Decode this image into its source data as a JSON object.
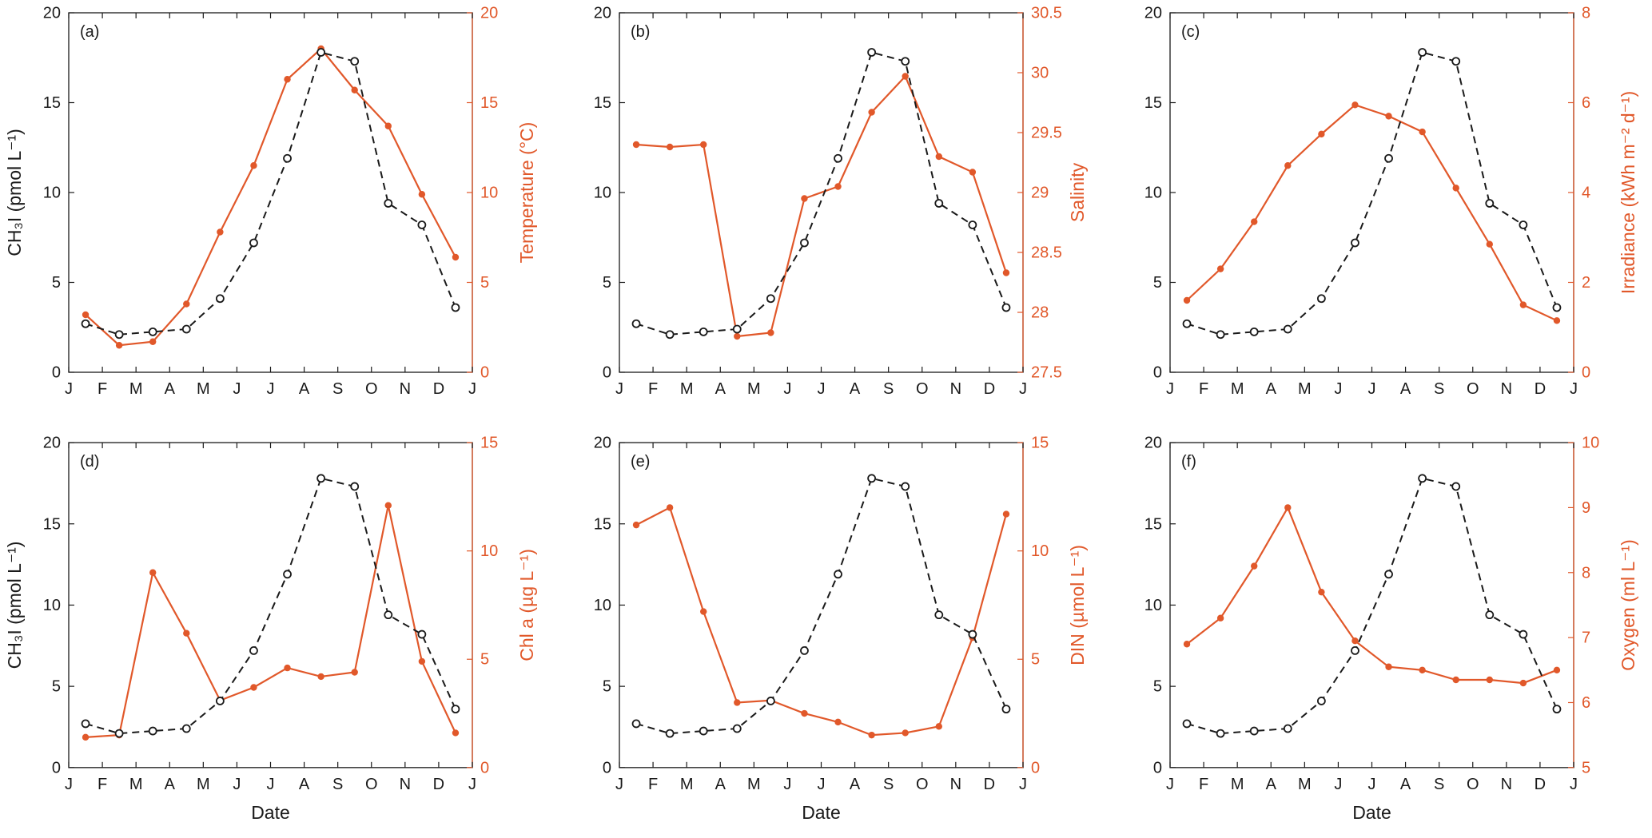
{
  "colors": {
    "primary": "#1a1a1a",
    "accent": "#e1582a",
    "background": "#ffffff"
  },
  "chart_data": {
    "type": "line",
    "xlabel": "Date",
    "x_tick_labels": [
      "J",
      "F",
      "M",
      "A",
      "M",
      "J",
      "J",
      "A",
      "S",
      "O",
      "N",
      "D",
      "J"
    ],
    "x_range_months": [
      0,
      12
    ],
    "grid": false,
    "ch3i": {
      "label": "CH₃I (pmol L⁻¹)",
      "ylim": [
        0,
        20
      ],
      "ticks": [
        0,
        5,
        10,
        15,
        20
      ],
      "style": "black dashed line, open circle markers",
      "values": [
        2.7,
        2.1,
        2.25,
        2.4,
        4.1,
        7.2,
        11.9,
        17.8,
        17.3,
        9.4,
        8.2,
        3.6
      ]
    },
    "panels": [
      {
        "id": "a",
        "label": "(a)",
        "show_left_label": true,
        "show_xlabel": false,
        "right": {
          "label": "Temperature (°C)",
          "ylim": [
            0,
            20
          ],
          "ticks": [
            0,
            5,
            10,
            15,
            20
          ],
          "style": "orange solid line, filled circle markers",
          "values": [
            3.2,
            1.5,
            1.7,
            3.8,
            7.8,
            11.5,
            16.3,
            18.0,
            15.7,
            13.7,
            9.9,
            6.4
          ]
        }
      },
      {
        "id": "b",
        "label": "(b)",
        "show_left_label": false,
        "show_xlabel": false,
        "right": {
          "label": "Salinity",
          "ylim": [
            27.5,
            30.5
          ],
          "ticks": [
            27.5,
            28,
            28.5,
            29,
            29.5,
            30,
            30.5
          ],
          "style": "orange solid line, filled circle markers",
          "values": [
            29.4,
            29.38,
            29.4,
            27.8,
            27.83,
            28.95,
            29.05,
            29.67,
            29.97,
            29.3,
            29.17,
            28.33
          ]
        }
      },
      {
        "id": "c",
        "label": "(c)",
        "show_left_label": false,
        "show_xlabel": false,
        "right": {
          "label": "Irradiance (kWh m⁻² d⁻¹)",
          "ylim": [
            0,
            8
          ],
          "ticks": [
            0,
            2,
            4,
            6,
            8
          ],
          "style": "orange solid line, filled circle markers",
          "values": [
            1.6,
            2.3,
            3.35,
            4.6,
            5.3,
            5.95,
            5.7,
            5.35,
            4.1,
            2.85,
            1.5,
            1.15
          ]
        }
      },
      {
        "id": "d",
        "label": "(d)",
        "show_left_label": true,
        "show_xlabel": true,
        "right": {
          "label": "Chl a (µg L⁻¹)",
          "ylim": [
            0,
            15
          ],
          "ticks": [
            0,
            5,
            10,
            15
          ],
          "style": "orange solid line, filled circle markers",
          "values": [
            1.4,
            1.5,
            9.0,
            6.2,
            3.1,
            3.7,
            4.6,
            4.2,
            4.4,
            12.1,
            4.9,
            1.6
          ]
        }
      },
      {
        "id": "e",
        "label": "(e)",
        "show_left_label": false,
        "show_xlabel": true,
        "right": {
          "label": "DIN (µmol L⁻¹)",
          "ylim": [
            0,
            15
          ],
          "ticks": [
            0,
            5,
            10,
            15
          ],
          "style": "orange solid line, filled circle markers",
          "values": [
            11.2,
            12.0,
            7.2,
            3.0,
            3.1,
            2.5,
            2.1,
            1.5,
            1.6,
            1.9,
            6.0,
            11.7
          ]
        }
      },
      {
        "id": "f",
        "label": "(f)",
        "show_left_label": false,
        "show_xlabel": true,
        "right": {
          "label": "Oxygen (ml L⁻¹)",
          "ylim": [
            5,
            10
          ],
          "ticks": [
            5,
            6,
            7,
            8,
            9,
            10
          ],
          "style": "orange solid line, filled circle markers",
          "values": [
            6.9,
            7.3,
            8.1,
            9.0,
            7.7,
            6.95,
            6.55,
            6.5,
            6.35,
            6.35,
            6.3,
            6.5
          ]
        }
      }
    ]
  }
}
